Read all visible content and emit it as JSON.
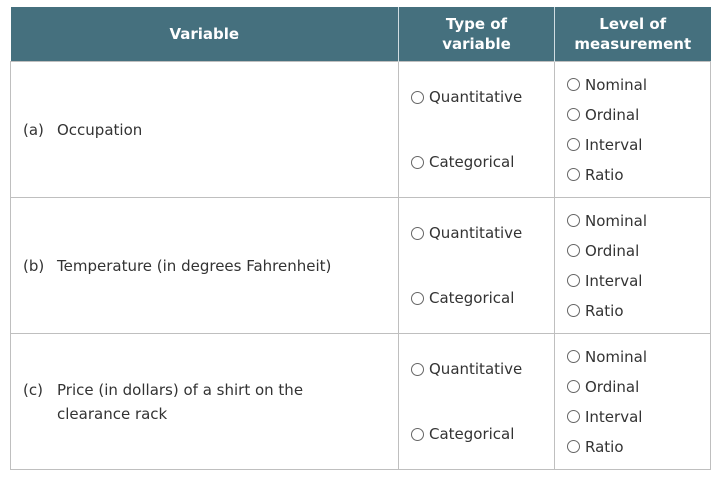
{
  "headers": {
    "variable": "Variable",
    "type": "Type of variable",
    "level": "Level of measurement"
  },
  "type_options": [
    "Quantitative",
    "Categorical"
  ],
  "level_options": [
    "Nominal",
    "Ordinal",
    "Interval",
    "Ratio"
  ],
  "rows": [
    {
      "label": "(a)",
      "text": "Occupation"
    },
    {
      "label": "(b)",
      "text": "Temperature (in degrees Fahrenheit)"
    },
    {
      "label": "(c)",
      "text": "Price (in dollars) of a shirt on the clearance rack"
    }
  ],
  "colors": {
    "header_bg": "#45707e",
    "border": "#bfbfbf"
  }
}
